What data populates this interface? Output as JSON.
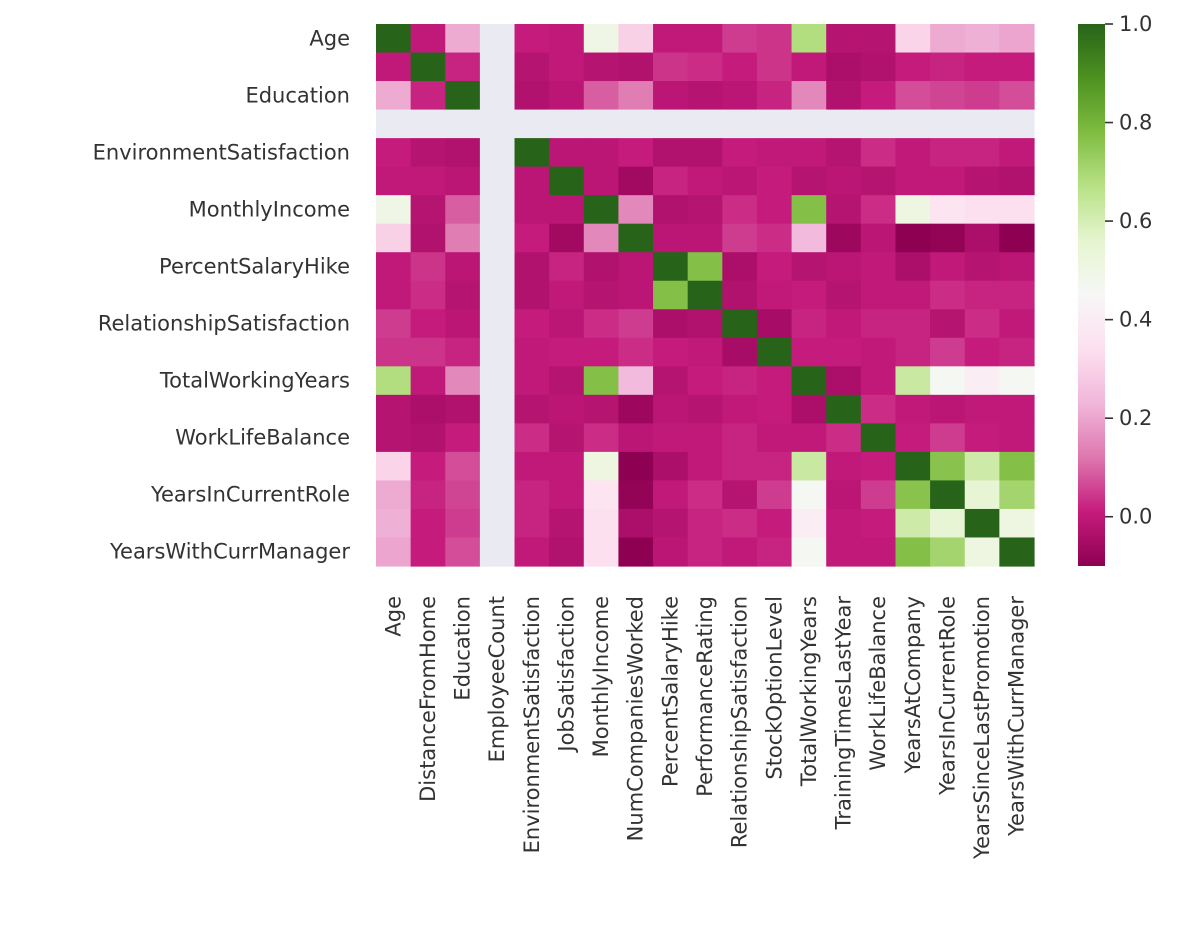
{
  "chart_data": {
    "type": "heatmap",
    "title": "",
    "xlabel": "",
    "ylabel": "",
    "variables": [
      "Age",
      "DistanceFromHome",
      "Education",
      "EmployeeCount",
      "EnvironmentSatisfaction",
      "JobSatisfaction",
      "MonthlyIncome",
      "NumCompaniesWorked",
      "PercentSalaryHike",
      "PerformanceRating",
      "RelationshipSatisfaction",
      "StockOptionLevel",
      "TotalWorkingYears",
      "TrainingTimesLastYear",
      "WorkLifeBalance",
      "YearsAtCompany",
      "YearsInCurrentRole",
      "YearsSinceLastPromotion",
      "YearsWithCurrManager"
    ],
    "y_tick_labels_shown": [
      "Age",
      "Education",
      "EnvironmentSatisfaction",
      "MonthlyIncome",
      "PercentSalaryHike",
      "RelationshipSatisfaction",
      "TotalWorkingYears",
      "WorkLifeBalance",
      "YearsInCurrentRole",
      "YearsWithCurrManager"
    ],
    "missing_variable": "EmployeeCount",
    "colormap": "PiYG",
    "colormap_stops": [
      "#8e0152",
      "#c51b7d",
      "#de77ae",
      "#f1b6da",
      "#fde0ef",
      "#f7f7f7",
      "#e6f5d0",
      "#b8e186",
      "#7fbc41",
      "#4d9221",
      "#276419"
    ],
    "nan_color": "#eaeaf2",
    "vmin": -0.1,
    "vmax": 1.0,
    "colorbar_ticks": [
      "0.0",
      "0.2",
      "0.4",
      "0.6",
      "0.8",
      "1.0"
    ],
    "values": [
      [
        1.0,
        -0.0,
        0.21,
        null,
        0.01,
        -0.0,
        0.5,
        0.3,
        0.0,
        0.0,
        0.05,
        0.04,
        0.68,
        -0.02,
        -0.02,
        0.31,
        0.21,
        0.22,
        0.2
      ],
      [
        -0.0,
        1.0,
        0.02,
        null,
        -0.02,
        -0.0,
        -0.02,
        -0.03,
        0.04,
        0.03,
        0.01,
        0.04,
        0.0,
        -0.04,
        -0.03,
        0.01,
        0.02,
        0.01,
        0.01
      ],
      [
        0.21,
        0.02,
        1.0,
        null,
        -0.03,
        -0.01,
        0.09,
        0.13,
        -0.01,
        -0.02,
        -0.01,
        0.02,
        0.15,
        -0.03,
        0.01,
        0.07,
        0.06,
        0.05,
        0.07
      ],
      [
        null,
        null,
        null,
        null,
        null,
        null,
        null,
        null,
        null,
        null,
        null,
        null,
        null,
        null,
        null,
        null,
        null,
        null,
        null
      ],
      [
        0.01,
        -0.02,
        -0.03,
        null,
        1.0,
        -0.01,
        -0.01,
        0.01,
        -0.03,
        -0.03,
        0.01,
        0.0,
        -0.0,
        -0.02,
        0.03,
        0.0,
        0.02,
        0.02,
        -0.0
      ],
      [
        -0.0,
        -0.0,
        -0.01,
        null,
        -0.01,
        1.0,
        -0.01,
        -0.06,
        0.02,
        0.0,
        -0.01,
        0.01,
        -0.02,
        -0.01,
        -0.02,
        -0.0,
        -0.0,
        -0.02,
        -0.03
      ],
      [
        0.5,
        -0.02,
        0.09,
        null,
        -0.01,
        -0.01,
        1.0,
        0.15,
        -0.03,
        -0.02,
        0.03,
        0.01,
        0.77,
        -0.02,
        0.03,
        0.51,
        0.36,
        0.34,
        0.34
      ],
      [
        0.3,
        -0.03,
        0.13,
        null,
        0.01,
        -0.06,
        0.15,
        1.0,
        -0.01,
        -0.01,
        0.05,
        0.03,
        0.24,
        -0.07,
        -0.01,
        -0.12,
        -0.09,
        -0.04,
        -0.11
      ],
      [
        0.0,
        0.04,
        -0.01,
        null,
        -0.03,
        0.02,
        -0.03,
        -0.01,
        1.0,
        0.77,
        -0.04,
        0.01,
        -0.02,
        -0.01,
        -0.0,
        -0.04,
        -0.0,
        -0.02,
        -0.01
      ],
      [
        0.0,
        0.03,
        -0.02,
        null,
        -0.03,
        0.0,
        -0.02,
        -0.01,
        0.77,
        1.0,
        -0.03,
        -0.0,
        0.01,
        -0.02,
        0.0,
        0.0,
        0.03,
        0.02,
        0.02
      ],
      [
        0.05,
        0.01,
        -0.01,
        null,
        0.01,
        -0.01,
        0.03,
        0.05,
        -0.04,
        -0.03,
        1.0,
        -0.05,
        0.02,
        0.0,
        0.02,
        0.02,
        -0.02,
        0.03,
        -0.0
      ],
      [
        0.04,
        0.04,
        0.02,
        null,
        0.0,
        0.01,
        0.01,
        0.03,
        0.01,
        -0.0,
        -0.05,
        1.0,
        0.01,
        0.01,
        0.0,
        0.02,
        0.05,
        0.01,
        0.02
      ],
      [
        0.68,
        0.0,
        0.15,
        null,
        -0.0,
        -0.02,
        0.77,
        0.24,
        -0.02,
        0.01,
        0.02,
        0.01,
        1.0,
        -0.04,
        0.0,
        0.63,
        0.46,
        0.4,
        0.46
      ],
      [
        -0.02,
        -0.04,
        -0.03,
        null,
        -0.02,
        -0.01,
        -0.02,
        -0.07,
        -0.01,
        -0.02,
        0.0,
        0.01,
        -0.04,
        1.0,
        0.03,
        0.0,
        -0.01,
        -0.0,
        -0.0
      ],
      [
        -0.02,
        -0.03,
        0.01,
        null,
        0.03,
        -0.02,
        0.03,
        -0.01,
        -0.0,
        0.0,
        0.02,
        0.0,
        0.0,
        0.03,
        1.0,
        0.01,
        0.05,
        0.01,
        0.0
      ],
      [
        0.31,
        0.01,
        0.07,
        null,
        0.0,
        -0.0,
        0.51,
        -0.12,
        -0.04,
        0.0,
        0.02,
        0.02,
        0.63,
        0.0,
        0.01,
        1.0,
        0.76,
        0.62,
        0.77
      ],
      [
        0.21,
        0.02,
        0.06,
        null,
        0.02,
        -0.0,
        0.36,
        -0.09,
        -0.0,
        0.03,
        -0.02,
        0.05,
        0.46,
        -0.01,
        0.05,
        0.76,
        1.0,
        0.55,
        0.71
      ],
      [
        0.22,
        0.01,
        0.05,
        null,
        0.02,
        -0.02,
        0.34,
        -0.04,
        -0.02,
        0.02,
        0.03,
        0.01,
        0.4,
        -0.0,
        0.01,
        0.62,
        0.55,
        1.0,
        0.51
      ],
      [
        0.2,
        0.01,
        0.07,
        null,
        -0.0,
        -0.03,
        0.34,
        -0.11,
        -0.01,
        0.02,
        -0.0,
        0.02,
        0.46,
        -0.0,
        0.0,
        0.77,
        0.71,
        0.51,
        1.0
      ]
    ]
  }
}
